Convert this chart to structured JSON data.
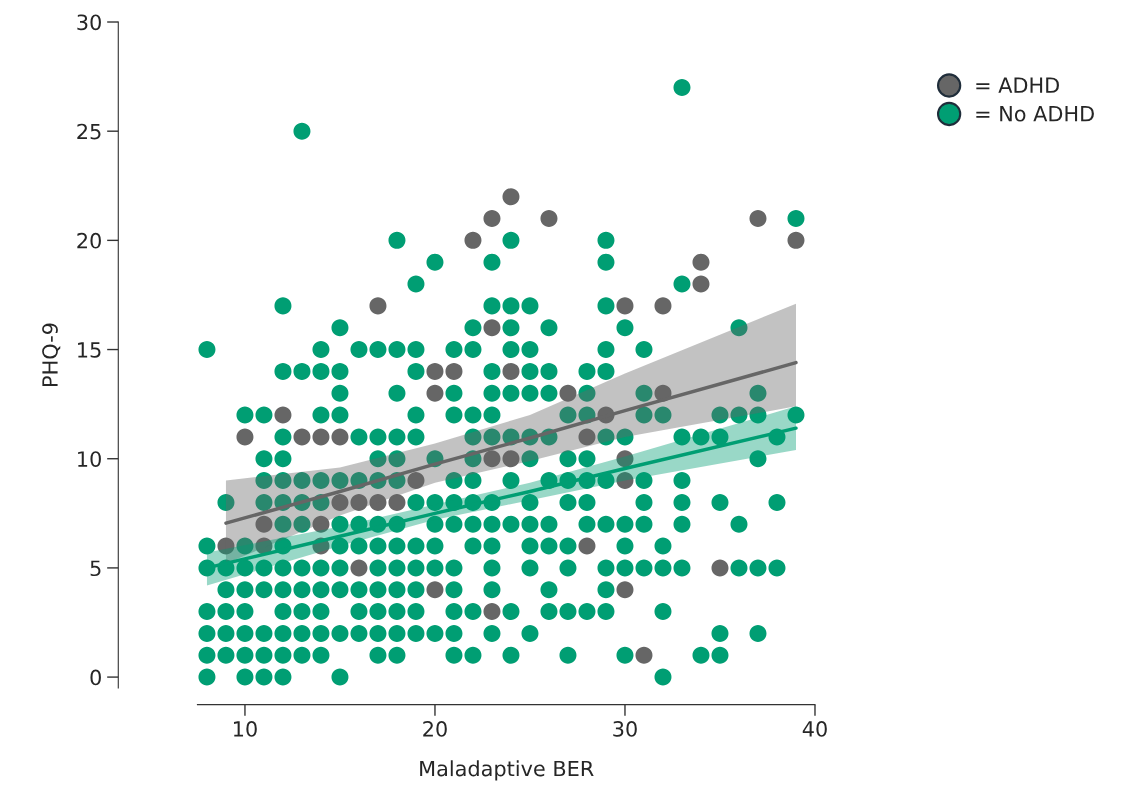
{
  "chart_data": {
    "type": "scatter",
    "xlabel": "Maladaptive BER",
    "ylabel": "PHQ-9",
    "xlim": [
      7.5,
      40
    ],
    "ylim": [
      -0.5,
      30
    ],
    "xticks": [
      10,
      20,
      30,
      40
    ],
    "yticks": [
      0,
      5,
      10,
      15,
      20,
      25,
      30
    ],
    "grid": false,
    "legend": "top right",
    "marker": "circle",
    "series": [
      {
        "name": "= No ADHD",
        "color": "#009e73",
        "x": [
          33,
          13,
          39,
          18,
          24,
          29,
          20,
          23,
          29,
          19,
          33,
          12,
          23,
          24,
          25,
          29,
          15,
          22,
          24,
          26,
          30,
          36,
          8,
          14,
          16,
          17,
          18,
          19,
          21,
          22,
          24,
          25,
          29,
          31,
          12,
          13,
          14,
          15,
          19,
          23,
          25,
          26,
          28,
          29,
          15,
          18,
          21,
          23,
          24,
          25,
          26,
          28,
          31,
          37,
          10,
          11,
          14,
          15,
          19,
          21,
          22,
          23,
          27,
          28,
          31,
          32,
          35,
          36,
          37,
          39,
          12,
          16,
          17,
          18,
          19,
          22,
          23,
          24,
          25,
          26,
          29,
          30,
          33,
          34,
          35,
          38,
          11,
          12,
          17,
          18,
          20,
          22,
          25,
          27,
          28,
          37,
          11,
          12,
          13,
          14,
          15,
          16,
          17,
          18,
          21,
          22,
          24,
          26,
          27,
          28,
          29,
          31,
          33,
          9,
          11,
          12,
          13,
          14,
          19,
          20,
          21,
          22,
          23,
          25,
          27,
          28,
          31,
          33,
          35,
          38,
          12,
          13,
          15,
          16,
          17,
          18,
          20,
          21,
          22,
          23,
          24,
          25,
          26,
          28,
          29,
          30,
          31,
          33,
          36,
          8,
          10,
          12,
          15,
          16,
          17,
          18,
          19,
          20,
          22,
          23,
          25,
          26,
          27,
          30,
          32,
          8,
          9,
          10,
          11,
          12,
          13,
          14,
          15,
          17,
          18,
          19,
          20,
          21,
          23,
          25,
          27,
          29,
          30,
          31,
          32,
          33,
          36,
          37,
          38,
          9,
          10,
          11,
          12,
          13,
          14,
          15,
          16,
          17,
          18,
          19,
          21,
          23,
          26,
          29,
          8,
          9,
          10,
          12,
          13,
          14,
          16,
          17,
          18,
          19,
          21,
          22,
          24,
          26,
          27,
          28,
          29,
          32,
          8,
          9,
          10,
          11,
          12,
          13,
          14,
          15,
          16,
          17,
          18,
          19,
          20,
          21,
          23,
          25,
          35,
          37,
          8,
          9,
          10,
          11,
          12,
          13,
          14,
          17,
          18,
          21,
          22,
          24,
          27,
          30,
          34,
          35,
          8,
          10,
          11,
          12,
          15,
          32
        ],
        "values": [
          27,
          25,
          21,
          20,
          20,
          20,
          19,
          19,
          19,
          18,
          18,
          17,
          17,
          17,
          17,
          17,
          16,
          16,
          16,
          16,
          16,
          16,
          15,
          15,
          15,
          15,
          15,
          15,
          15,
          15,
          15,
          15,
          15,
          15,
          14,
          14,
          14,
          14,
          14,
          14,
          14,
          14,
          14,
          14,
          13,
          13,
          13,
          13,
          13,
          13,
          13,
          13,
          13,
          13,
          12,
          12,
          12,
          12,
          12,
          12,
          12,
          12,
          12,
          12,
          12,
          12,
          12,
          12,
          12,
          12,
          11,
          11,
          11,
          11,
          11,
          11,
          11,
          11,
          11,
          11,
          11,
          11,
          11,
          11,
          11,
          11,
          10,
          10,
          10,
          10,
          10,
          10,
          10,
          10,
          10,
          10,
          9,
          9,
          9,
          9,
          9,
          9,
          9,
          9,
          9,
          9,
          9,
          9,
          9,
          9,
          9,
          9,
          9,
          8,
          8,
          8,
          8,
          8,
          8,
          8,
          8,
          8,
          8,
          8,
          8,
          8,
          8,
          8,
          8,
          8,
          7,
          7,
          7,
          7,
          7,
          7,
          7,
          7,
          7,
          7,
          7,
          7,
          7,
          7,
          7,
          7,
          7,
          7,
          7,
          6,
          6,
          6,
          6,
          6,
          6,
          6,
          6,
          6,
          6,
          6,
          6,
          6,
          6,
          6,
          6,
          5,
          5,
          5,
          5,
          5,
          5,
          5,
          5,
          5,
          5,
          5,
          5,
          5,
          5,
          5,
          5,
          5,
          5,
          5,
          5,
          5,
          5,
          5,
          5,
          4,
          4,
          4,
          4,
          4,
          4,
          4,
          4,
          4,
          4,
          4,
          4,
          4,
          4,
          4,
          3,
          3,
          3,
          3,
          3,
          3,
          3,
          3,
          3,
          3,
          3,
          3,
          3,
          3,
          3,
          3,
          3,
          3,
          2,
          2,
          2,
          2,
          2,
          2,
          2,
          2,
          2,
          2,
          2,
          2,
          2,
          2,
          2,
          2,
          2,
          2,
          1,
          1,
          1,
          1,
          1,
          1,
          1,
          1,
          1,
          1,
          1,
          1,
          1,
          1,
          1,
          1,
          0,
          0,
          0,
          0,
          0,
          0
        ]
      },
      {
        "name": "= ADHD",
        "color": "#666666",
        "x": [
          24,
          23,
          26,
          37,
          22,
          39,
          34,
          34,
          17,
          30,
          32,
          23,
          20,
          21,
          24,
          20,
          27,
          32,
          12,
          29,
          10,
          13,
          14,
          15,
          28,
          23,
          24,
          30,
          19,
          30,
          15,
          16,
          17,
          18,
          11,
          14,
          9,
          11,
          14,
          28,
          16,
          35,
          20,
          30,
          23,
          31
        ],
        "values": [
          22,
          21,
          21,
          21,
          20,
          20,
          19,
          18,
          17,
          17,
          17,
          16,
          14,
          14,
          14,
          13,
          13,
          13,
          12,
          12,
          11,
          11,
          11,
          11,
          11,
          10,
          10,
          10,
          9,
          9,
          8,
          8,
          8,
          8,
          7,
          7,
          6,
          6,
          6,
          6,
          5,
          5,
          4,
          4,
          3,
          1
        ]
      },
      {
        "type": "line",
        "marker": "none",
        "color": "#666666",
        "x": [
          9,
          15,
          20,
          25,
          30,
          39
        ],
        "values": [
          7.05,
          8.5,
          9.75,
          10.95,
          12.2,
          14.4
        ],
        "lower": [
          5.2,
          7.4,
          8.9,
          9.9,
          11.0,
          12.4
        ],
        "upper": [
          9.0,
          9.6,
          10.7,
          12.0,
          13.9,
          17.1
        ]
      },
      {
        "type": "line",
        "marker": "none",
        "color": "#009e73",
        "x": [
          8,
          15,
          20,
          25,
          30,
          39
        ],
        "values": [
          5.0,
          6.45,
          7.5,
          8.5,
          9.55,
          11.4
        ],
        "lower": [
          4.2,
          6.0,
          7.2,
          8.1,
          9.0,
          10.4
        ],
        "upper": [
          5.7,
          6.9,
          7.9,
          8.9,
          10.1,
          12.4
        ]
      }
    ]
  }
}
